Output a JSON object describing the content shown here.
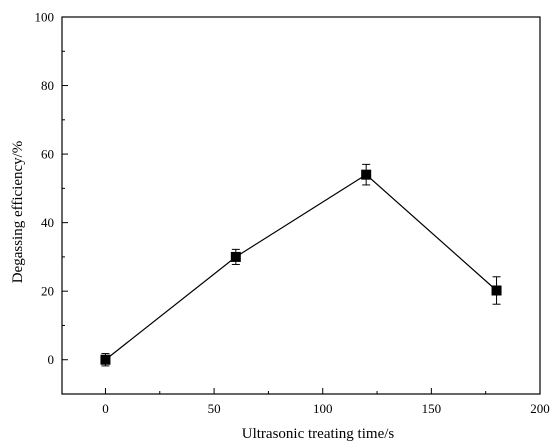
{
  "chart_data": {
    "type": "line",
    "title": "",
    "xlabel": "Ultrasonic treating time/s",
    "ylabel": "Degassing efficiency/%",
    "xlim": [
      -20,
      200
    ],
    "ylim": [
      -10,
      100
    ],
    "xticks": [
      0,
      50,
      100,
      150,
      200
    ],
    "yticks": [
      0,
      20,
      40,
      60,
      80,
      100
    ],
    "grid": false,
    "legend": "none",
    "line_color": "#000000",
    "marker": "square",
    "series": [
      {
        "x": [
          0,
          60,
          120,
          180
        ],
        "values": [
          0,
          30,
          54,
          20.2
        ],
        "error": [
          1.8,
          2.2,
          3.0,
          4.0
        ]
      }
    ]
  }
}
